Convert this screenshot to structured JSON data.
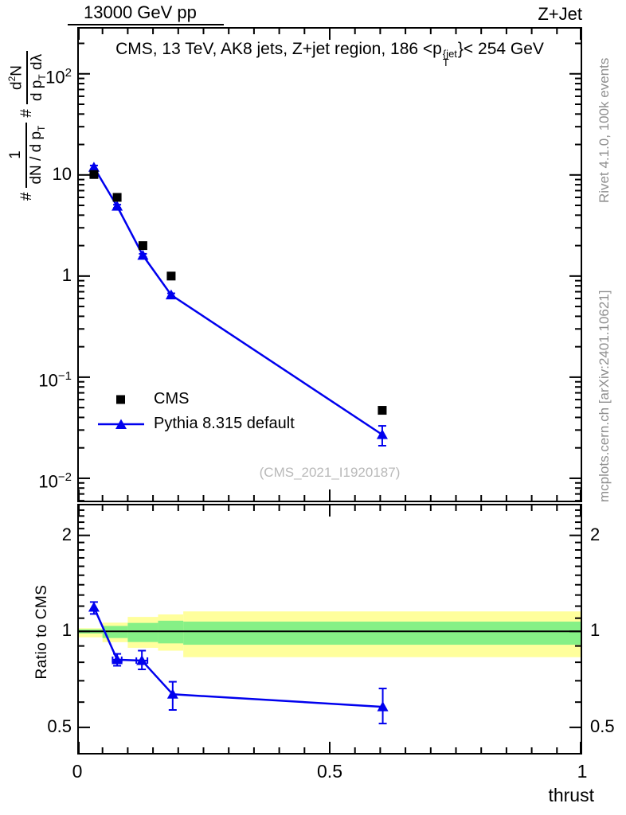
{
  "header": {
    "left": "13000 GeV pp",
    "right": "Z+Jet"
  },
  "title": {
    "text_before_p": "CMS, 13 TeV, AK8 jets, Z+jet region, 186 <p",
    "p_sup": "{jet",
    "p_sub": "T",
    "text_after": "}< 254 GeV"
  },
  "ylabel_main": {
    "hash1": "#",
    "f1_num": "1",
    "f1_den_main": "dN / d p",
    "f1_den_sub": "T",
    "hash2": "#",
    "f2_num_main": "d",
    "f2_num_sup": "2",
    "f2_num_main2": "N",
    "f2_den_main": "d p",
    "f2_den_sub": "T",
    "f2_den_main2": " dλ"
  },
  "legend": {
    "items": [
      {
        "label": "CMS",
        "marker": "square",
        "color": "#000000",
        "line": false
      },
      {
        "label": "Pythia 8.315 default",
        "marker": "triangle",
        "color": "#0000ee",
        "line": true
      }
    ]
  },
  "watermark": "(CMS_2021_I1920187)",
  "sidenotes": {
    "top": "Rivet 4.1.0,  100k events",
    "bottom": "mcplots.cern.ch [arXiv:2401.10621]"
  },
  "ratio_axis": {
    "ylabel": "Ratio to CMS",
    "tick_labels": [
      {
        "text": "2",
        "value": 2
      },
      {
        "text": "1",
        "value": 1
      },
      {
        "text": "0.5",
        "value": 0.5
      }
    ]
  },
  "xaxis": {
    "label": "thrust",
    "tick_labels": [
      {
        "text": "0",
        "value": 0
      },
      {
        "text": "0.5",
        "value": 0.5
      },
      {
        "text": "1",
        "value": 1
      }
    ]
  },
  "chart_data": {
    "type": "scatter",
    "title": "CMS, 13 TeV, AK8 jets, Z+jet region, 186 < pT(jet) < 254 GeV",
    "xlabel": "thrust",
    "xlim": [
      0,
      1
    ],
    "grid": false,
    "legend_position": "left-middle-of-main-panel",
    "main_panel": {
      "ylabel": "# 1/(dN/dpT)  # d2N/(dpT dlambda)",
      "yscale": "log",
      "ylim": [
        0.0058,
        290
      ],
      "ytick_labels": [
        {
          "text": "10",
          "sup": "2",
          "value": 100
        },
        {
          "text": "10",
          "sup": "",
          "value": 10
        },
        {
          "text": "1",
          "sup": "",
          "value": 1
        },
        {
          "text": "10",
          "sup": "−1",
          "value": 0.1
        },
        {
          "text": "10",
          "sup": "−2",
          "value": 0.01
        }
      ],
      "series": [
        {
          "name": "CMS",
          "marker": "square",
          "color": "#000000",
          "line": false,
          "x": [
            0.033,
            0.079,
            0.13,
            0.186,
            0.604
          ],
          "y": [
            10.1,
            6.0,
            2.0,
            1.0,
            0.047
          ]
        },
        {
          "name": "Pythia 8.315 default",
          "marker": "triangle",
          "color": "#0000ee",
          "line": true,
          "x": [
            0.033,
            0.079,
            0.13,
            0.186,
            0.604
          ],
          "y": [
            11.9,
            4.9,
            1.6,
            0.65,
            0.027
          ],
          "yerr_plus": [
            0.5,
            0.18,
            0.06,
            0.025,
            0.006
          ],
          "yerr_minus": [
            0.5,
            0.18,
            0.06,
            0.025,
            0.006
          ]
        }
      ]
    },
    "ratio_panel": {
      "ylabel": "Ratio to CMS",
      "yscale": "log",
      "ylim": [
        0.411,
        2.512
      ],
      "reference_line": 1,
      "bands": {
        "bin_edges": [
          0,
          0.05,
          0.1,
          0.16,
          0.21,
          1.0
        ],
        "yellow_ranges": [
          [
            0.958,
            1.023
          ],
          [
            0.925,
            1.065
          ],
          [
            0.888,
            1.11
          ],
          [
            0.87,
            1.13
          ],
          [
            0.83,
            1.155
          ]
        ],
        "green_ranges": [
          [
            0.985,
            1.015
          ],
          [
            0.953,
            1.04
          ],
          [
            0.926,
            1.063
          ],
          [
            0.917,
            1.08
          ],
          [
            0.908,
            1.073
          ]
        ],
        "yellow_color": "#ffff9c",
        "green_color": "#86f086"
      },
      "points": {
        "color": "#0000ee",
        "x": [
          0.033,
          0.079,
          0.128,
          0.189,
          0.605
        ],
        "y": [
          1.19,
          0.815,
          0.81,
          0.635,
          0.58
        ],
        "eyp": [
          0.046,
          0.035,
          0.06,
          0.06,
          0.082
        ],
        "eym": [
          0.056,
          0.035,
          0.05,
          0.068,
          0.066
        ],
        "ex": [
          0,
          0.009,
          0.011,
          0,
          0
        ]
      }
    }
  }
}
